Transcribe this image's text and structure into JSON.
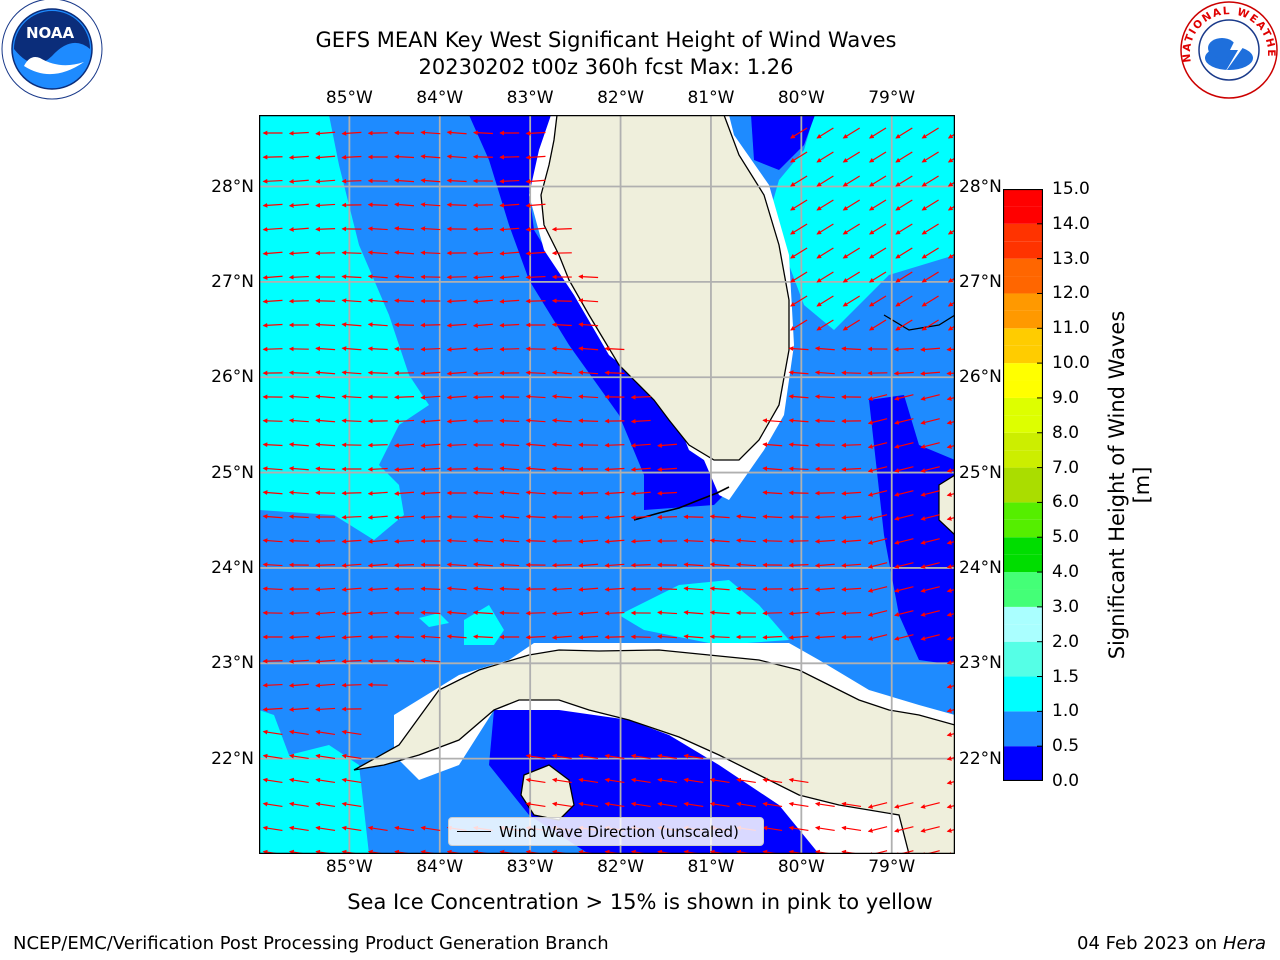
{
  "title_line1": "GEFS MEAN Key West Significant Height of Wind Waves",
  "title_line2": "20230202 t00z 360h fcst   Max: 1.26",
  "map": {
    "lon_ticks": [
      "85°W",
      "84°W",
      "83°W",
      "82°W",
      "81°W",
      "80°W",
      "79°W"
    ],
    "lat_ticks": [
      "28°N",
      "27°N",
      "26°N",
      "25°N",
      "24°N",
      "23°N",
      "22°N"
    ],
    "lon_values": [
      -85,
      -84,
      -83,
      -82,
      -81,
      -80,
      -79
    ],
    "lat_values": [
      28,
      27,
      26,
      25,
      24,
      23,
      22
    ],
    "extent": {
      "lon_min": -86.0,
      "lon_max": -78.3,
      "lat_min": 21.0,
      "lat_max": 28.75
    },
    "gridlines": true
  },
  "colorbar": {
    "title": "Significant Height of Wind Waves [m]",
    "ticks": [
      "15.0",
      "14.0",
      "13.0",
      "12.0",
      "11.0",
      "10.0",
      "9.0",
      "8.0",
      "7.0",
      "6.0",
      "5.0",
      "4.0",
      "3.0",
      "2.0",
      "1.5",
      "1.0",
      "0.5",
      "0.0"
    ],
    "tick_values": [
      15,
      14,
      13,
      12,
      11,
      10,
      9,
      8,
      7,
      6,
      5,
      4,
      3,
      2,
      1.5,
      1,
      0.5,
      0
    ],
    "levels": [
      0,
      0.5,
      1,
      1.5,
      2,
      2.5,
      3,
      3.5,
      4,
      4.5,
      5,
      5.5,
      6,
      6.5,
      7,
      7.5,
      8,
      8.5,
      9,
      9.5,
      10,
      10.5,
      11,
      11.5,
      12,
      12.5,
      13,
      13.5,
      14,
      14.5,
      15
    ],
    "colors": [
      "#0000ff",
      "#1e8bff",
      "#00ffff",
      "#55ffe6",
      "#aaffff",
      "#aaffff",
      "#44ff77",
      "#44ff77",
      "#00dd00",
      "#00dd00",
      "#55ee00",
      "#55ee00",
      "#aadd00",
      "#aadd00",
      "#ccee00",
      "#ccee00",
      "#ddff00",
      "#ddff00",
      "#ffff00",
      "#ffff00",
      "#ffcc00",
      "#ffcc00",
      "#ff9900",
      "#ff9900",
      "#ff6600",
      "#ff6600",
      "#ff3300",
      "#ff3300",
      "#ff0000",
      "#ff0000"
    ]
  },
  "legend": {
    "label": "Wind Wave Direction (unscaled)"
  },
  "note": "Sea Ice Concentration > 15% is shown in pink to yellow",
  "footer": {
    "left": "NCEP/EMC/Verification Post Processing Product Generation Branch",
    "date": "04 Feb 2023 on",
    "machine": "Hera"
  },
  "colors": {
    "wave_0_05": "#0000ff",
    "wave_05_1": "#1e8bff",
    "wave_1_15": "#00ffff",
    "land": "#efefdc",
    "coast": "#000000",
    "arrows": "#ff0000",
    "grid": "#b0b0b0"
  },
  "logos": {
    "left": "noaa-logo",
    "right": "nws-logo",
    "left_text": "NOAA",
    "right_text": "NATIONAL WEATHER SERVICE"
  }
}
